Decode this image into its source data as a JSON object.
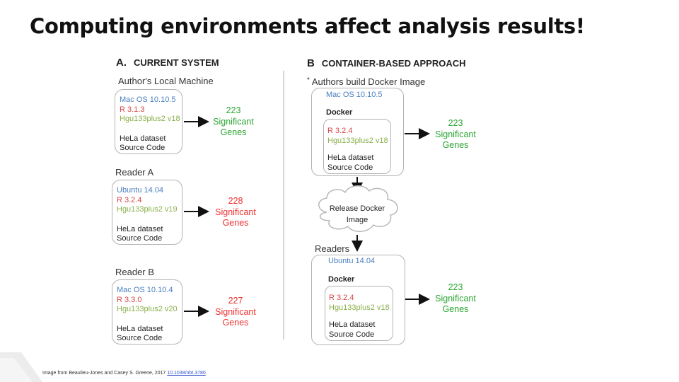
{
  "title": "Computing environments affect analysis results!",
  "panel_a": {
    "letter": "A.",
    "heading": "CURRENT SYSTEM",
    "author": {
      "label": "Author's Local Machine",
      "lines": [
        "Mac OS 10.10.5",
        "R 3.1.3",
        "Hgu133plus2 v18",
        "HeLa dataset",
        "Source Code"
      ],
      "result": [
        "223",
        "Significant",
        "Genes"
      ]
    },
    "reader_a": {
      "label": "Reader A",
      "lines": [
        "Ubuntu 14.04",
        "R 3.2.4",
        "Hgu133plus2 v19",
        "HeLa dataset",
        "Source Code"
      ],
      "result": [
        "228",
        "Significant",
        "Genes"
      ]
    },
    "reader_b": {
      "label": "Reader B",
      "lines": [
        "Mac OS 10.10.4",
        "R 3.3.0",
        "Hgu133plus2 v20",
        "HeLa dataset",
        "Source Code"
      ],
      "result": [
        "227",
        "Significant",
        "Genes"
      ]
    }
  },
  "panel_b": {
    "letter": "B",
    "heading": "CONTAINER-BASED APPROACH",
    "bullet": "*",
    "authors_label": "Authors build Docker Image",
    "author_box": {
      "os": "Mac OS 10.10.5",
      "docker": "Docker",
      "lines": [
        "R 3.2.4",
        "Hgu133plus2 v18",
        "HeLa dataset",
        "Source Code"
      ],
      "result": [
        "223",
        "Significant",
        "Genes"
      ]
    },
    "cloud": [
      "Release Docker",
      "Image"
    ],
    "readers_label": "Readers",
    "reader_box": {
      "os": "Ubuntu 14.04",
      "docker": "Docker",
      "lines": [
        "R 3.2.4",
        "Hgu133plus2 v18",
        "HeLa dataset",
        "Source Code"
      ],
      "result": [
        "223",
        "Significant",
        "Genes"
      ]
    }
  },
  "caption": {
    "text": "Image from Beaulieu-Jones and Casey S. Greene, 2017 ",
    "link": "10.1038/nbt.3780",
    "suffix": "."
  }
}
